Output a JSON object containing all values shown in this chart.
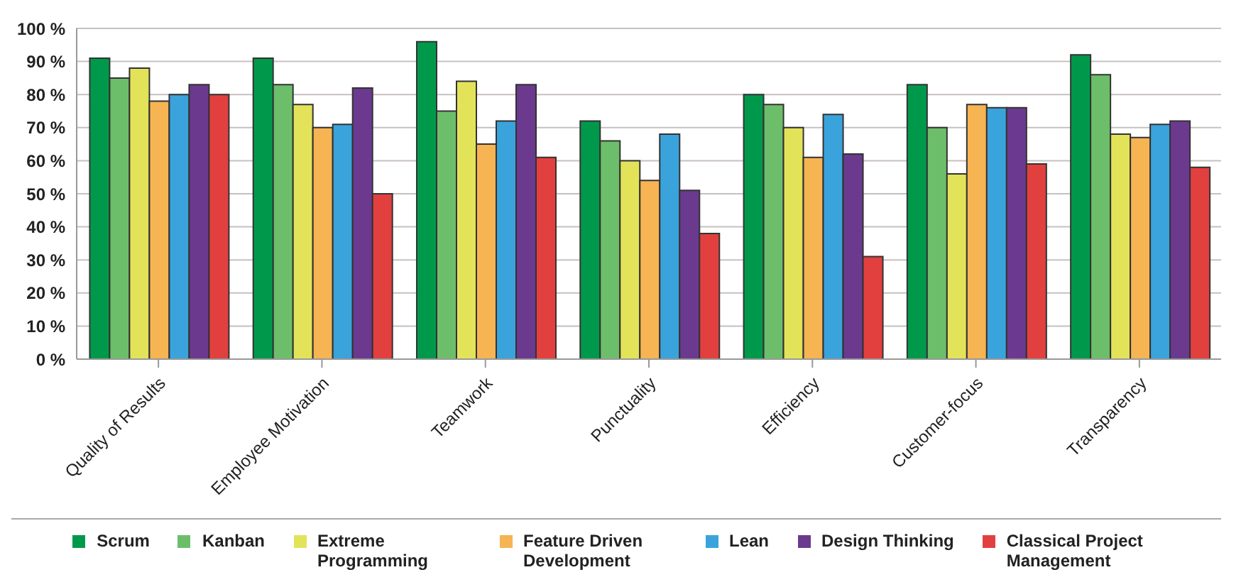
{
  "chart_data": {
    "type": "bar",
    "categories": [
      "Quality of Results",
      "Employee Motivation",
      "Teamwork",
      "Punctuality",
      "Efficiency",
      "Customer-focus",
      "Transparency"
    ],
    "series": [
      {
        "name": "Scrum",
        "color": "#00994c",
        "values": [
          91,
          91,
          96,
          72,
          80,
          83,
          92
        ]
      },
      {
        "name": "Kanban",
        "color": "#6dbe6a",
        "values": [
          85,
          83,
          75,
          66,
          77,
          70,
          86
        ]
      },
      {
        "name": "Extreme Programming",
        "color": "#e3e35a",
        "values": [
          88,
          77,
          84,
          60,
          70,
          56,
          68
        ]
      },
      {
        "name": "Feature Driven Development",
        "color": "#f6b453",
        "values": [
          78,
          70,
          65,
          54,
          61,
          77,
          67
        ]
      },
      {
        "name": "Lean",
        "color": "#3aa3dc",
        "values": [
          80,
          71,
          72,
          68,
          74,
          76,
          71
        ]
      },
      {
        "name": "Design Thinking",
        "color": "#6b3a8f",
        "values": [
          83,
          82,
          83,
          51,
          62,
          76,
          72
        ]
      },
      {
        "name": "Classical Project Management",
        "color": "#e2403f",
        "values": [
          80,
          50,
          61,
          38,
          31,
          59,
          58
        ]
      }
    ],
    "ylim": [
      0,
      100
    ],
    "yticks": [
      {
        "value": 0,
        "label": "0 %"
      },
      {
        "value": 10,
        "label": "10 %"
      },
      {
        "value": 20,
        "label": "20 %"
      },
      {
        "value": 30,
        "label": "30 %"
      },
      {
        "value": 40,
        "label": "40 %"
      },
      {
        "value": 50,
        "label": "50 %"
      },
      {
        "value": 60,
        "label": "60 %"
      },
      {
        "value": 70,
        "label": "70 %"
      },
      {
        "value": 80,
        "label": "80 %"
      },
      {
        "value": 90,
        "label": "90 %"
      },
      {
        "value": 100,
        "label": "100 %"
      }
    ],
    "grid": "y",
    "legend": "bottom"
  }
}
